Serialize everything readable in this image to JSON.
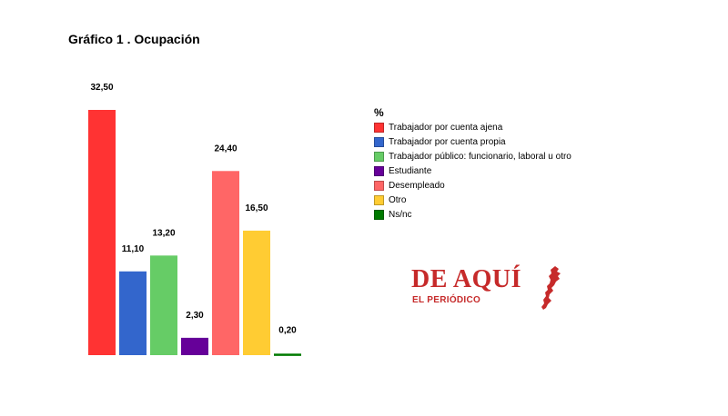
{
  "chart_data": {
    "type": "bar",
    "title": "Gráfico 1 . Ocupación",
    "legend_title": "%",
    "legend_position": "right",
    "grid": false,
    "ylim": [
      0,
      32.5
    ],
    "series": [
      {
        "name": "Trabajador por cuenta ajena",
        "value": 32.5,
        "label": "32,50",
        "color": "#ff3333"
      },
      {
        "name": "Trabajador por cuenta propia",
        "value": 11.1,
        "label": "11,10",
        "color": "#3366cc"
      },
      {
        "name": "Trabajador público: funcionario, laboral u otro",
        "value": 13.2,
        "label": "13,20",
        "color": "#66cc66"
      },
      {
        "name": "Estudiante",
        "value": 2.3,
        "label": "2,30",
        "color": "#660099"
      },
      {
        "name": "Desempleado",
        "value": 24.4,
        "label": "24,40",
        "color": "#ff6666"
      },
      {
        "name": "Otro",
        "value": 16.5,
        "label": "16,50",
        "color": "#ffcc33"
      },
      {
        "name": "Ns/nc",
        "value": 0.2,
        "label": "0,20",
        "color": "#007a00"
      }
    ]
  },
  "brand": {
    "name": "DE AQUÍ",
    "subtitle": "EL PERIÓDICO",
    "color": "#c62a2a"
  }
}
